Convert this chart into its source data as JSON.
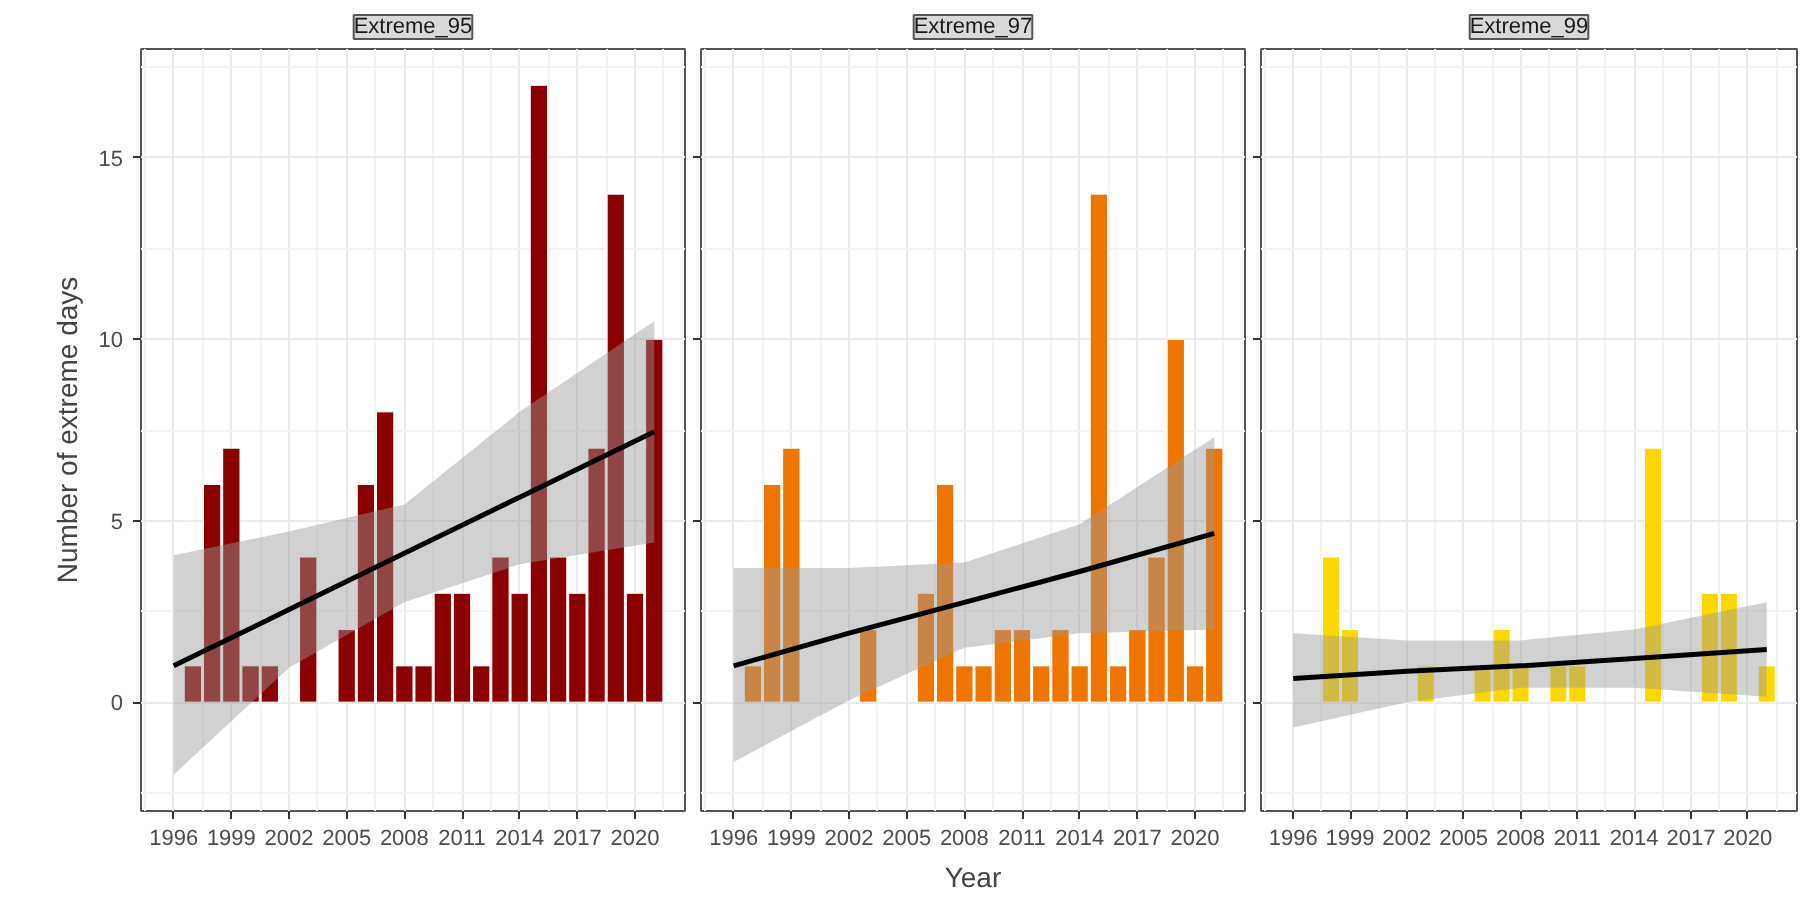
{
  "chart_data": [
    {
      "type": "bar",
      "title": "Extreme_95",
      "ylabel": "Number of extreme days",
      "xlim": [
        1994.3,
        2022.6
      ],
      "xticks": [
        1996,
        1999,
        2002,
        2005,
        2008,
        2011,
        2014,
        2017,
        2020
      ],
      "ylim": [
        -3,
        18
      ],
      "yticks": [
        0,
        5,
        10,
        15
      ],
      "grid": true,
      "series": [
        {
          "color": "#8b0000",
          "x": [
            1997,
            1998,
            1999,
            2000,
            2001,
            2003,
            2005,
            2006,
            2007,
            2008,
            2009,
            2010,
            2011,
            2012,
            2013,
            2014,
            2015,
            2016,
            2017,
            2018,
            2019,
            2020,
            2021
          ],
          "values": [
            1,
            6,
            7,
            1,
            1,
            4,
            2,
            6,
            8,
            1,
            1,
            3,
            3,
            1,
            4,
            3,
            17,
            4,
            3,
            7,
            14,
            3,
            10
          ]
        },
        {
          "type": "line",
          "color": "#000000",
          "x": [
            1996,
            2002,
            2008,
            2014,
            2021
          ],
          "values": [
            1.0,
            2.55,
            4.1,
            5.65,
            7.45
          ],
          "lower": [
            -2.0,
            0.95,
            2.75,
            3.8,
            4.4
          ],
          "upper": [
            4.05,
            4.7,
            5.45,
            8.0,
            10.5
          ]
        }
      ]
    },
    {
      "type": "bar",
      "title": "Extreme_97",
      "xlabel": "Year",
      "xlim": [
        1994.3,
        2022.6
      ],
      "xticks": [
        1996,
        1999,
        2002,
        2005,
        2008,
        2011,
        2014,
        2017,
        2020
      ],
      "ylim": [
        -3,
        18
      ],
      "yticks": [
        0,
        5,
        10,
        15
      ],
      "grid": true,
      "tick_labels": "x",
      "series": [
        {
          "color": "#ee7600",
          "x": [
            1997,
            1998,
            1999,
            2003,
            2006,
            2007,
            2008,
            2009,
            2010,
            2011,
            2012,
            2013,
            2014,
            2015,
            2016,
            2017,
            2018,
            2019,
            2020,
            2021
          ],
          "values": [
            1,
            6,
            7,
            2,
            3,
            6,
            1,
            1,
            2,
            2,
            1,
            2,
            1,
            14,
            1,
            2,
            4,
            10,
            1,
            7
          ]
        },
        {
          "type": "line",
          "color": "#000000",
          "x": [
            1996,
            2002,
            2008,
            2014,
            2021
          ],
          "values": [
            1.0,
            1.9,
            2.75,
            3.6,
            4.65
          ],
          "lower": [
            -1.65,
            0.05,
            1.5,
            1.9,
            2.0
          ],
          "upper": [
            3.7,
            3.7,
            3.85,
            4.9,
            7.3
          ]
        }
      ]
    },
    {
      "type": "bar",
      "title": "Extreme_99",
      "xlim": [
        1994.3,
        2022.6
      ],
      "xticks": [
        1996,
        1999,
        2002,
        2005,
        2008,
        2011,
        2014,
        2017,
        2020
      ],
      "ylim": [
        -3,
        18
      ],
      "yticks": [
        0,
        5,
        10,
        15
      ],
      "grid": true,
      "tick_labels": "x",
      "series": [
        {
          "color": "#ffd700",
          "x": [
            1998,
            1999,
            2003,
            2006,
            2007,
            2008,
            2010,
            2011,
            2015,
            2018,
            2019,
            2021
          ],
          "values": [
            4,
            2,
            1,
            1,
            2,
            1,
            1,
            1,
            7,
            3,
            3,
            1
          ]
        },
        {
          "type": "line",
          "color": "#000000",
          "x": [
            1996,
            2002,
            2008,
            2014,
            2021
          ],
          "values": [
            0.65,
            0.85,
            1.0,
            1.2,
            1.45
          ],
          "lower": [
            -0.7,
            0.0,
            0.4,
            0.4,
            0.15
          ],
          "upper": [
            1.9,
            1.7,
            1.7,
            2.0,
            2.75
          ]
        }
      ]
    }
  ]
}
